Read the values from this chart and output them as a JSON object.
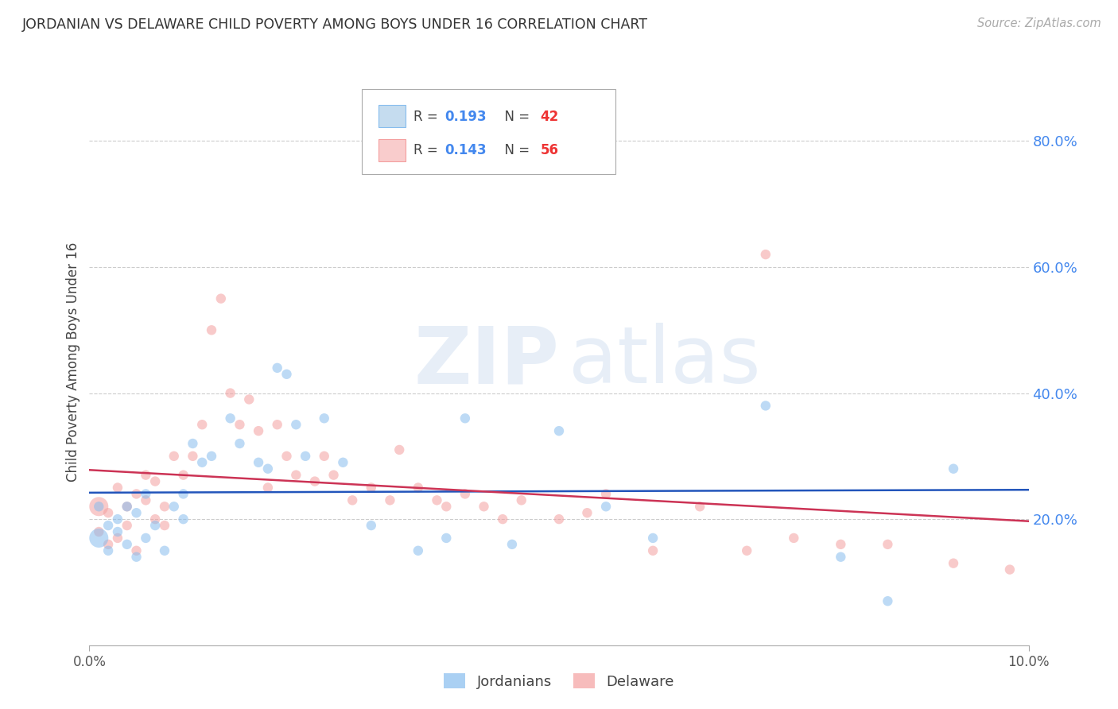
{
  "title": "JORDANIAN VS DELAWARE CHILD POVERTY AMONG BOYS UNDER 16 CORRELATION CHART",
  "source": "Source: ZipAtlas.com",
  "ylabel": "Child Poverty Among Boys Under 16",
  "xlim": [
    0.0,
    0.1
  ],
  "ylim": [
    0.0,
    0.9
  ],
  "right_ytick_vals": [
    0.2,
    0.4,
    0.6,
    0.8
  ],
  "right_ytick_labels": [
    "20.0%",
    "40.0%",
    "60.0%",
    "80.0%"
  ],
  "xtick_vals": [
    0.0,
    0.1
  ],
  "xtick_labels": [
    "0.0%",
    "10.0%"
  ],
  "jordanians_color": "#87BDEE",
  "delaware_color": "#F4A0A0",
  "jordan_line_color": "#2255BB",
  "delaware_line_color": "#CC3355",
  "right_axis_color": "#4488EE",
  "legend_R_color": "#4488EE",
  "legend_N_color": "#EE3333",
  "grid_color": "#CCCCCC",
  "background_color": "#FFFFFF",
  "title_color": "#333333",
  "source_color": "#AAAAAA",
  "jordanians_label": "Jordanians",
  "delaware_label": "Delaware",
  "legend_line1": "R = 0.193   N = 42",
  "legend_line2": "R = 0.143   N = 56",
  "jordanians": {
    "x": [
      0.001,
      0.001,
      0.002,
      0.002,
      0.003,
      0.003,
      0.004,
      0.004,
      0.005,
      0.005,
      0.006,
      0.006,
      0.007,
      0.008,
      0.009,
      0.01,
      0.01,
      0.011,
      0.012,
      0.013,
      0.015,
      0.016,
      0.018,
      0.019,
      0.02,
      0.021,
      0.022,
      0.023,
      0.025,
      0.027,
      0.03,
      0.035,
      0.038,
      0.04,
      0.045,
      0.05,
      0.055,
      0.06,
      0.072,
      0.08,
      0.085,
      0.092
    ],
    "y": [
      0.17,
      0.22,
      0.19,
      0.15,
      0.2,
      0.18,
      0.22,
      0.16,
      0.14,
      0.21,
      0.24,
      0.17,
      0.19,
      0.15,
      0.22,
      0.24,
      0.2,
      0.32,
      0.29,
      0.3,
      0.36,
      0.32,
      0.29,
      0.28,
      0.44,
      0.43,
      0.35,
      0.3,
      0.36,
      0.29,
      0.19,
      0.15,
      0.17,
      0.36,
      0.16,
      0.34,
      0.22,
      0.17,
      0.38,
      0.14,
      0.07,
      0.28
    ],
    "sizes": [
      300,
      80,
      80,
      80,
      80,
      80,
      80,
      80,
      80,
      80,
      80,
      80,
      80,
      80,
      80,
      80,
      80,
      80,
      80,
      80,
      80,
      80,
      80,
      80,
      80,
      80,
      80,
      80,
      80,
      80,
      80,
      80,
      80,
      80,
      80,
      80,
      80,
      80,
      80,
      80,
      80,
      80
    ]
  },
  "delaware": {
    "x": [
      0.001,
      0.001,
      0.002,
      0.002,
      0.003,
      0.003,
      0.004,
      0.004,
      0.005,
      0.005,
      0.006,
      0.006,
      0.007,
      0.007,
      0.008,
      0.008,
      0.009,
      0.01,
      0.011,
      0.012,
      0.013,
      0.014,
      0.015,
      0.016,
      0.017,
      0.018,
      0.019,
      0.02,
      0.021,
      0.022,
      0.024,
      0.025,
      0.026,
      0.028,
      0.03,
      0.032,
      0.033,
      0.035,
      0.037,
      0.038,
      0.04,
      0.042,
      0.044,
      0.046,
      0.05,
      0.053,
      0.055,
      0.06,
      0.065,
      0.07,
      0.072,
      0.075,
      0.08,
      0.085,
      0.092,
      0.098
    ],
    "y": [
      0.22,
      0.18,
      0.21,
      0.16,
      0.25,
      0.17,
      0.22,
      0.19,
      0.24,
      0.15,
      0.23,
      0.27,
      0.26,
      0.2,
      0.22,
      0.19,
      0.3,
      0.27,
      0.3,
      0.35,
      0.5,
      0.55,
      0.4,
      0.35,
      0.39,
      0.34,
      0.25,
      0.35,
      0.3,
      0.27,
      0.26,
      0.3,
      0.27,
      0.23,
      0.25,
      0.23,
      0.31,
      0.25,
      0.23,
      0.22,
      0.24,
      0.22,
      0.2,
      0.23,
      0.2,
      0.21,
      0.24,
      0.15,
      0.22,
      0.15,
      0.62,
      0.17,
      0.16,
      0.16,
      0.13,
      0.12
    ],
    "sizes": [
      300,
      80,
      80,
      80,
      80,
      80,
      80,
      80,
      80,
      80,
      80,
      80,
      80,
      80,
      80,
      80,
      80,
      80,
      80,
      80,
      80,
      80,
      80,
      80,
      80,
      80,
      80,
      80,
      80,
      80,
      80,
      80,
      80,
      80,
      80,
      80,
      80,
      80,
      80,
      80,
      80,
      80,
      80,
      80,
      80,
      80,
      80,
      80,
      80,
      80,
      80,
      80,
      80,
      80,
      80,
      80
    ]
  }
}
